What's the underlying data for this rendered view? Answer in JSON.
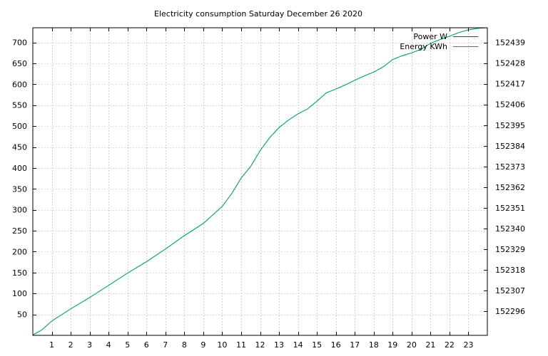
{
  "chart_data": {
    "type": "line",
    "title": "Electricity consumption Saturday December 26 2020",
    "xlabel": "",
    "ylabel": "",
    "xlim": [
      0,
      24
    ],
    "ylim": [
      0,
      735
    ],
    "y2lim": [
      152283.2,
      152446.8
    ],
    "x_ticks": [
      1,
      2,
      3,
      4,
      5,
      6,
      7,
      8,
      9,
      10,
      11,
      12,
      13,
      14,
      15,
      16,
      17,
      18,
      19,
      20,
      21,
      22,
      23
    ],
    "y_ticks": [
      50,
      100,
      150,
      200,
      250,
      300,
      350,
      400,
      450,
      500,
      550,
      600,
      650,
      700
    ],
    "y2_ticks": [
      152296,
      152307,
      152318,
      152329,
      152340,
      152351,
      152362,
      152373,
      152384,
      152395,
      152406,
      152417,
      152428,
      152439
    ],
    "grid": true,
    "legend_position": "top-right",
    "series": [
      {
        "name": "Power W",
        "axis": "left",
        "color": "#9400d3",
        "x": [],
        "y": []
      },
      {
        "name": "Energy KWh",
        "axis": "right",
        "color": "#009e73",
        "x": [
          0,
          0.5,
          1,
          2,
          3,
          4,
          5,
          6,
          7,
          8,
          9,
          10,
          10.5,
          11,
          11.5,
          12,
          12.5,
          13,
          13.5,
          14,
          14.5,
          15,
          15.5,
          16,
          16.5,
          17,
          17.5,
          18,
          18.5,
          19,
          19.5,
          20,
          20.5,
          21,
          21.5,
          22,
          22.5,
          23,
          23.5,
          24
        ],
        "y": [
          152283.4,
          152286.3,
          152290.8,
          152297.3,
          152303.3,
          152309.8,
          152316.3,
          152322.4,
          152329.1,
          152336.2,
          152342.7,
          152351.8,
          152358.6,
          152366.9,
          152373.0,
          152381.4,
          152388.3,
          152393.7,
          152397.7,
          152401.0,
          152403.6,
          152407.7,
          152412.2,
          152414.2,
          152416.4,
          152418.9,
          152421.2,
          152423.2,
          152426.0,
          152429.9,
          152431.9,
          152433.4,
          152435.4,
          152438.6,
          152440.5,
          152442.3,
          152444.3,
          152445.7,
          152446.5,
          152446.8
        ]
      }
    ]
  }
}
